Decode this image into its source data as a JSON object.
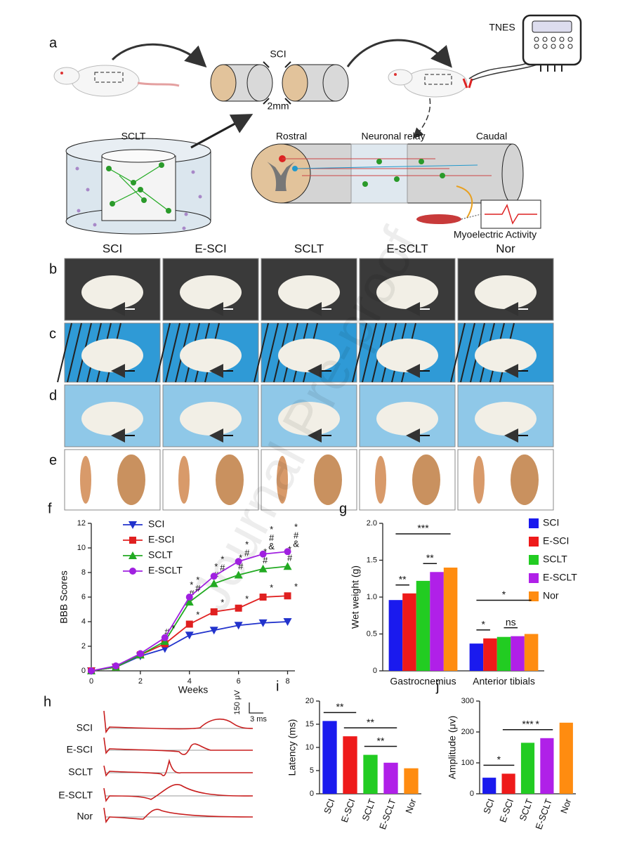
{
  "watermark": "Journal Pre-proof",
  "panel_labels": {
    "a": "a",
    "b": "b",
    "c": "c",
    "d": "d",
    "e": "e",
    "f": "f",
    "g": "g",
    "h": "h",
    "i": "i",
    "j": "j"
  },
  "diagram": {
    "sci": "SCI",
    "gap": "2mm",
    "tnes": "TNES",
    "sclt": "SCLT",
    "rostral": "Rostral",
    "relay": "Neuronal relay",
    "caudal": "Caudal",
    "myo": "Myoelectric Activity"
  },
  "photo_columns": [
    "SCI",
    "E-SCI",
    "SCLT",
    "E-SCLT",
    "Nor"
  ],
  "traces": {
    "labels": [
      "SCI",
      "E-SCI",
      "SCLT",
      "E-SCLT",
      "Nor"
    ],
    "scale_y": "150 μV",
    "scale_x": "3 ms"
  },
  "chart_data": [
    {
      "type": "line",
      "x_label": "Weeks",
      "y_label": "BBB Scores",
      "x": [
        0,
        1,
        2,
        3,
        4,
        5,
        6,
        7,
        8
      ],
      "xlim": [
        0,
        8.3
      ],
      "xticks": [
        0,
        2,
        4,
        6,
        8
      ],
      "ylim": [
        0,
        12
      ],
      "yticks": [
        0,
        2,
        4,
        6,
        8,
        10,
        12
      ],
      "legend": "top-left",
      "series": [
        {
          "name": "SCI",
          "color": "#2233cc",
          "marker": "triangle-down",
          "values": [
            0,
            0.3,
            1.2,
            1.8,
            2.9,
            3.3,
            3.7,
            3.9,
            4.0
          ],
          "sig": [
            null,
            null,
            null,
            null,
            null,
            null,
            null,
            null,
            null
          ]
        },
        {
          "name": "E-SCI",
          "color": "#e02020",
          "marker": "square",
          "values": [
            0,
            0.3,
            1.3,
            2.2,
            3.8,
            4.8,
            5.1,
            6.0,
            6.1
          ],
          "sig": [
            null,
            null,
            null,
            null,
            "*",
            "*",
            "*",
            "*",
            "*"
          ]
        },
        {
          "name": "SCLT",
          "color": "#22aa22",
          "marker": "triangle-up",
          "values": [
            0,
            0.3,
            1.3,
            2.4,
            5.6,
            7.1,
            7.8,
            8.3,
            8.5
          ],
          "sig": [
            null,
            null,
            null,
            "#",
            "*#",
            "*#",
            "*#",
            "*#",
            "*#"
          ]
        },
        {
          "name": "E-SCLT",
          "color": "#a020e0",
          "marker": "circle",
          "values": [
            0,
            0.4,
            1.4,
            2.7,
            6.0,
            7.7,
            8.9,
            9.5,
            9.7
          ],
          "sig": [
            null,
            null,
            null,
            "*",
            "*#",
            "*#",
            "*#",
            "*#&",
            "*#&"
          ]
        }
      ]
    },
    {
      "type": "grouped-bar",
      "y_label": "Wet weight (g)",
      "categories": [
        "Gastrocnemius",
        "Anterior tibials"
      ],
      "ylim": [
        0,
        2
      ],
      "yticks": [
        0,
        0.5,
        {
          "value": 1,
          "label": "1.0"
        },
        1.5,
        {
          "value": 2,
          "label": "2.0"
        }
      ],
      "legend": "right",
      "series": [
        {
          "name": "SCI",
          "color": "#1a1aee",
          "values": [
            0.96,
            0.37
          ]
        },
        {
          "name": "E-SCI",
          "color": "#ee1a1a",
          "values": [
            1.05,
            0.44
          ]
        },
        {
          "name": "SCLT",
          "color": "#22cc22",
          "values": [
            1.22,
            0.46
          ]
        },
        {
          "name": "E-SCLT",
          "color": "#b020e8",
          "values": [
            1.34,
            0.47
          ]
        },
        {
          "name": "Nor",
          "color": "#ff8c10",
          "values": [
            1.4,
            0.5
          ]
        }
      ],
      "annotations": [
        {
          "category": 0,
          "from": 0,
          "to": 1,
          "label": "**"
        },
        {
          "category": 0,
          "from": 2,
          "to": 3,
          "label": "**"
        },
        {
          "category": 0,
          "from": 0,
          "to": 4,
          "label": "***"
        },
        {
          "category": 1,
          "from": 0,
          "to": 1,
          "label": "*"
        },
        {
          "category": 1,
          "from": 2,
          "to": 3,
          "label": "ns"
        },
        {
          "category": 1,
          "from": 0,
          "to": 4,
          "label": "*"
        }
      ]
    },
    {
      "type": "bar",
      "y_label": "Latency (ms)",
      "categories": [
        "SCI",
        "E-SCI",
        "SCLT",
        "E-SCLT",
        "Nor"
      ],
      "values": [
        15.7,
        12.4,
        8.4,
        6.7,
        5.5
      ],
      "colors": [
        "#1a1aee",
        "#ee1a1a",
        "#22cc22",
        "#b020e8",
        "#ff8c10"
      ],
      "ylim": [
        0,
        20
      ],
      "yticks": [
        0,
        5,
        10,
        15,
        20
      ],
      "annotations": [
        {
          "from": 0,
          "to": 1,
          "label": "**"
        },
        {
          "from": 1,
          "to": 3,
          "label": "**"
        },
        {
          "from": 2,
          "to": 3,
          "label": "**"
        }
      ]
    },
    {
      "type": "bar",
      "y_label": "Amplitude (μv)",
      "categories": [
        "SCI",
        "E-SCI",
        "SCLT",
        "E-SCLT",
        "Nor"
      ],
      "values": [
        52,
        65,
        165,
        180,
        230
      ],
      "colors": [
        "#1a1aee",
        "#ee1a1a",
        "#22cc22",
        "#b020e8",
        "#ff8c10"
      ],
      "ylim": [
        0,
        300
      ],
      "yticks": [
        0,
        100,
        200,
        300
      ],
      "annotations": [
        {
          "from": 0,
          "to": 1,
          "label": "*"
        },
        {
          "from": 1,
          "to": 3,
          "label": "***"
        },
        {
          "from": 2,
          "to": 3,
          "label": "*"
        }
      ]
    }
  ]
}
